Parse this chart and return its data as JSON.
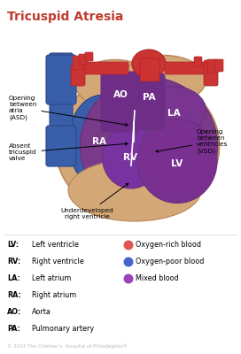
{
  "title": "Tricuspid Atresia",
  "title_color": "#c0392b",
  "title_fontsize": 10,
  "bg_color": "#ffffff",
  "legend_items_left": [
    [
      "LV",
      "Left ventricle"
    ],
    [
      "RV",
      "Right ventricle"
    ],
    [
      "LA",
      "Left atrium"
    ],
    [
      "RA",
      "Right atrium"
    ],
    [
      "AO",
      "Aorta"
    ],
    [
      "PA",
      "Pulmonary artery"
    ]
  ],
  "legend_items_right": [
    "Oxygen-rich blood",
    "Oxygen-poor blood",
    "Mixed blood"
  ],
  "legend_colors_right": [
    "#e05555",
    "#4466cc",
    "#9944bb"
  ],
  "copyright": "© 2014 The Children’s  Hospital of Philadelphia®",
  "heart_tan": "#d4a876",
  "heart_tan_edge": "#b8855a",
  "ra_color": "#3a5faa",
  "ra_edge": "#2a4888",
  "purple_dark": "#6a3080",
  "purple_mid": "#7a3a8a",
  "purple_light": "#8844aa",
  "red_color": "#cc3333",
  "red_dark": "#aa2222",
  "white": "#ffffff",
  "ann_fontsize": 5.2,
  "label_fontsize": 7.5
}
